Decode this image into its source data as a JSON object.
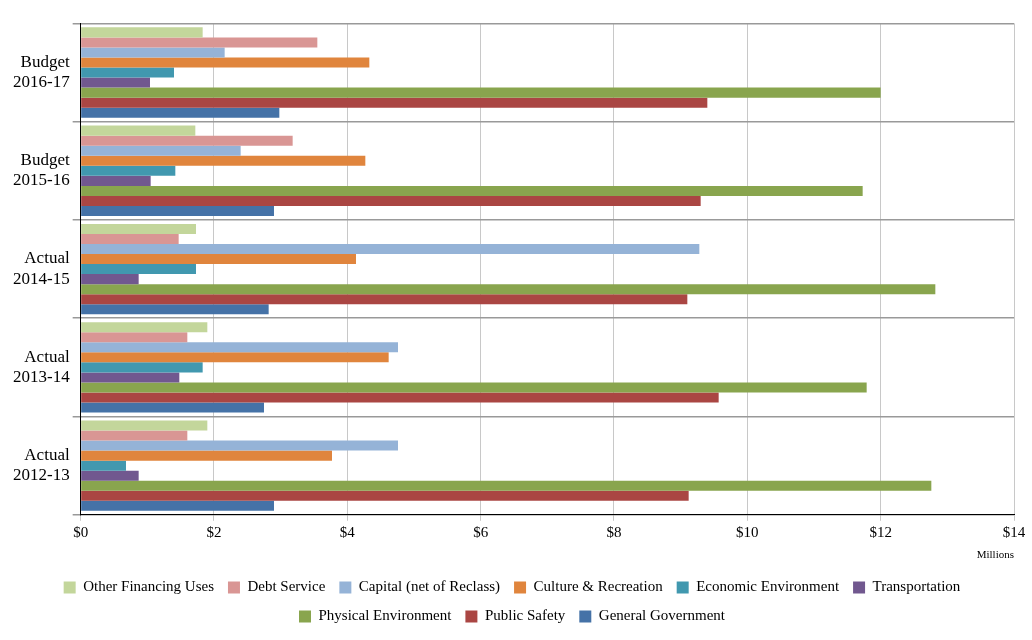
{
  "chart_data": {
    "type": "bar",
    "orientation": "horizontal",
    "xlabel": "Millions",
    "categories": [
      "Budget 2016-17",
      "Budget 2015-16",
      "Actual 2014-15",
      "Actual 2013-14",
      "Actual 2012-13"
    ],
    "series": [
      {
        "name": "Other Financing Uses",
        "color": "#c3d69b",
        "values": [
          1.83,
          1.72,
          1.73,
          1.9,
          1.9
        ]
      },
      {
        "name": "Debt Service",
        "color": "#d99694",
        "values": [
          3.55,
          3.18,
          1.47,
          1.6,
          1.6
        ]
      },
      {
        "name": "Capital (net of Reclass)",
        "color": "#95b3d7",
        "values": [
          2.16,
          2.4,
          9.28,
          4.76,
          4.76
        ]
      },
      {
        "name": "Culture & Recreation",
        "color": "#e0853d",
        "values": [
          4.33,
          4.27,
          4.13,
          4.62,
          3.77
        ]
      },
      {
        "name": "Economic Environment",
        "color": "#4198af",
        "values": [
          1.4,
          1.42,
          1.73,
          1.83,
          0.68
        ]
      },
      {
        "name": "Transportation",
        "color": "#71588f",
        "values": [
          1.04,
          1.05,
          0.87,
          1.48,
          0.87
        ]
      },
      {
        "name": "Physical Environment",
        "color": "#89a54e",
        "values": [
          12.0,
          11.73,
          12.82,
          11.79,
          12.76
        ]
      },
      {
        "name": "Public Safety",
        "color": "#aa4643",
        "values": [
          9.4,
          9.3,
          9.1,
          9.57,
          9.12
        ]
      },
      {
        "name": "General Government",
        "color": "#4572a7",
        "values": [
          2.98,
          2.9,
          2.82,
          2.75,
          2.9
        ]
      }
    ],
    "xlim": [
      0,
      14
    ],
    "xticks": [
      {
        "value": 0,
        "label": "$0"
      },
      {
        "value": 2,
        "label": "$2"
      },
      {
        "value": 4,
        "label": "$4"
      },
      {
        "value": 6,
        "label": "$6"
      },
      {
        "value": 8,
        "label": "$8"
      },
      {
        "value": 10,
        "label": "$10"
      },
      {
        "value": 12,
        "label": "$12"
      },
      {
        "value": 14,
        "label": "$14"
      }
    ],
    "grid": "x",
    "legend": "bottom"
  }
}
